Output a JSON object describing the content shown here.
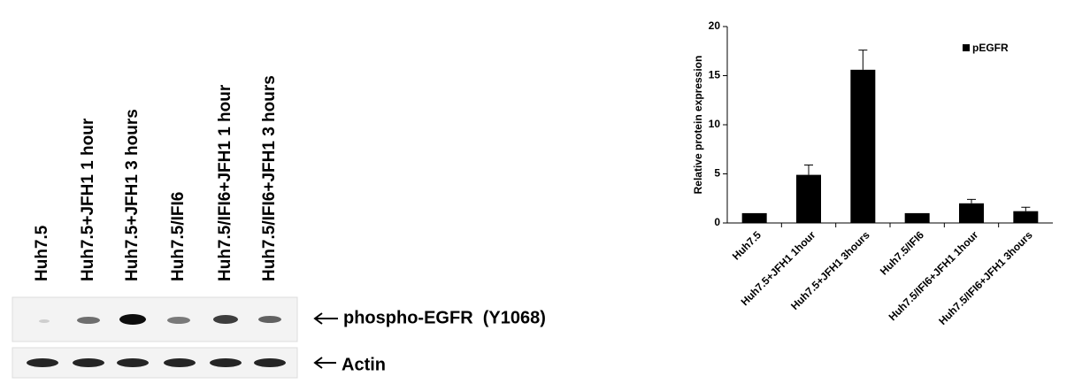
{
  "blot": {
    "lanes": [
      "Huh7.5",
      "Huh7.5+JFH1 1 hour",
      "Huh7.5+JFH1 3 hours",
      "Huh7.5/IFI6",
      "Huh7.5/IFI6+JFH1 1 hour",
      "Huh7.5/IFI6+JFH1 3 hours"
    ],
    "rows": [
      "phospho-EGFR  (Y1068)",
      "Actin"
    ]
  },
  "chart_data": {
    "type": "bar",
    "y_label": "Relative protein expression",
    "categories": [
      "Huh7.5",
      "Huh7.5+JFH1 1hour",
      "Huh7.5+JFH1 3hours",
      "Huh7.5/IFI6",
      "Huh7.5/IFI6+JFH1 1hour",
      "Huh7.5/IFI6+JFH1 3hours"
    ],
    "series": [
      {
        "name": "pEGFR",
        "color": "#000000",
        "values": [
          1,
          4.9,
          15.6,
          1,
          2.0,
          1.2
        ],
        "errors": [
          null,
          1.0,
          2.0,
          null,
          0.4,
          0.4
        ]
      }
    ],
    "ylim": [
      0,
      20
    ],
    "yticks": [
      0,
      5,
      10,
      15,
      20
    ],
    "legend": "upper right"
  }
}
